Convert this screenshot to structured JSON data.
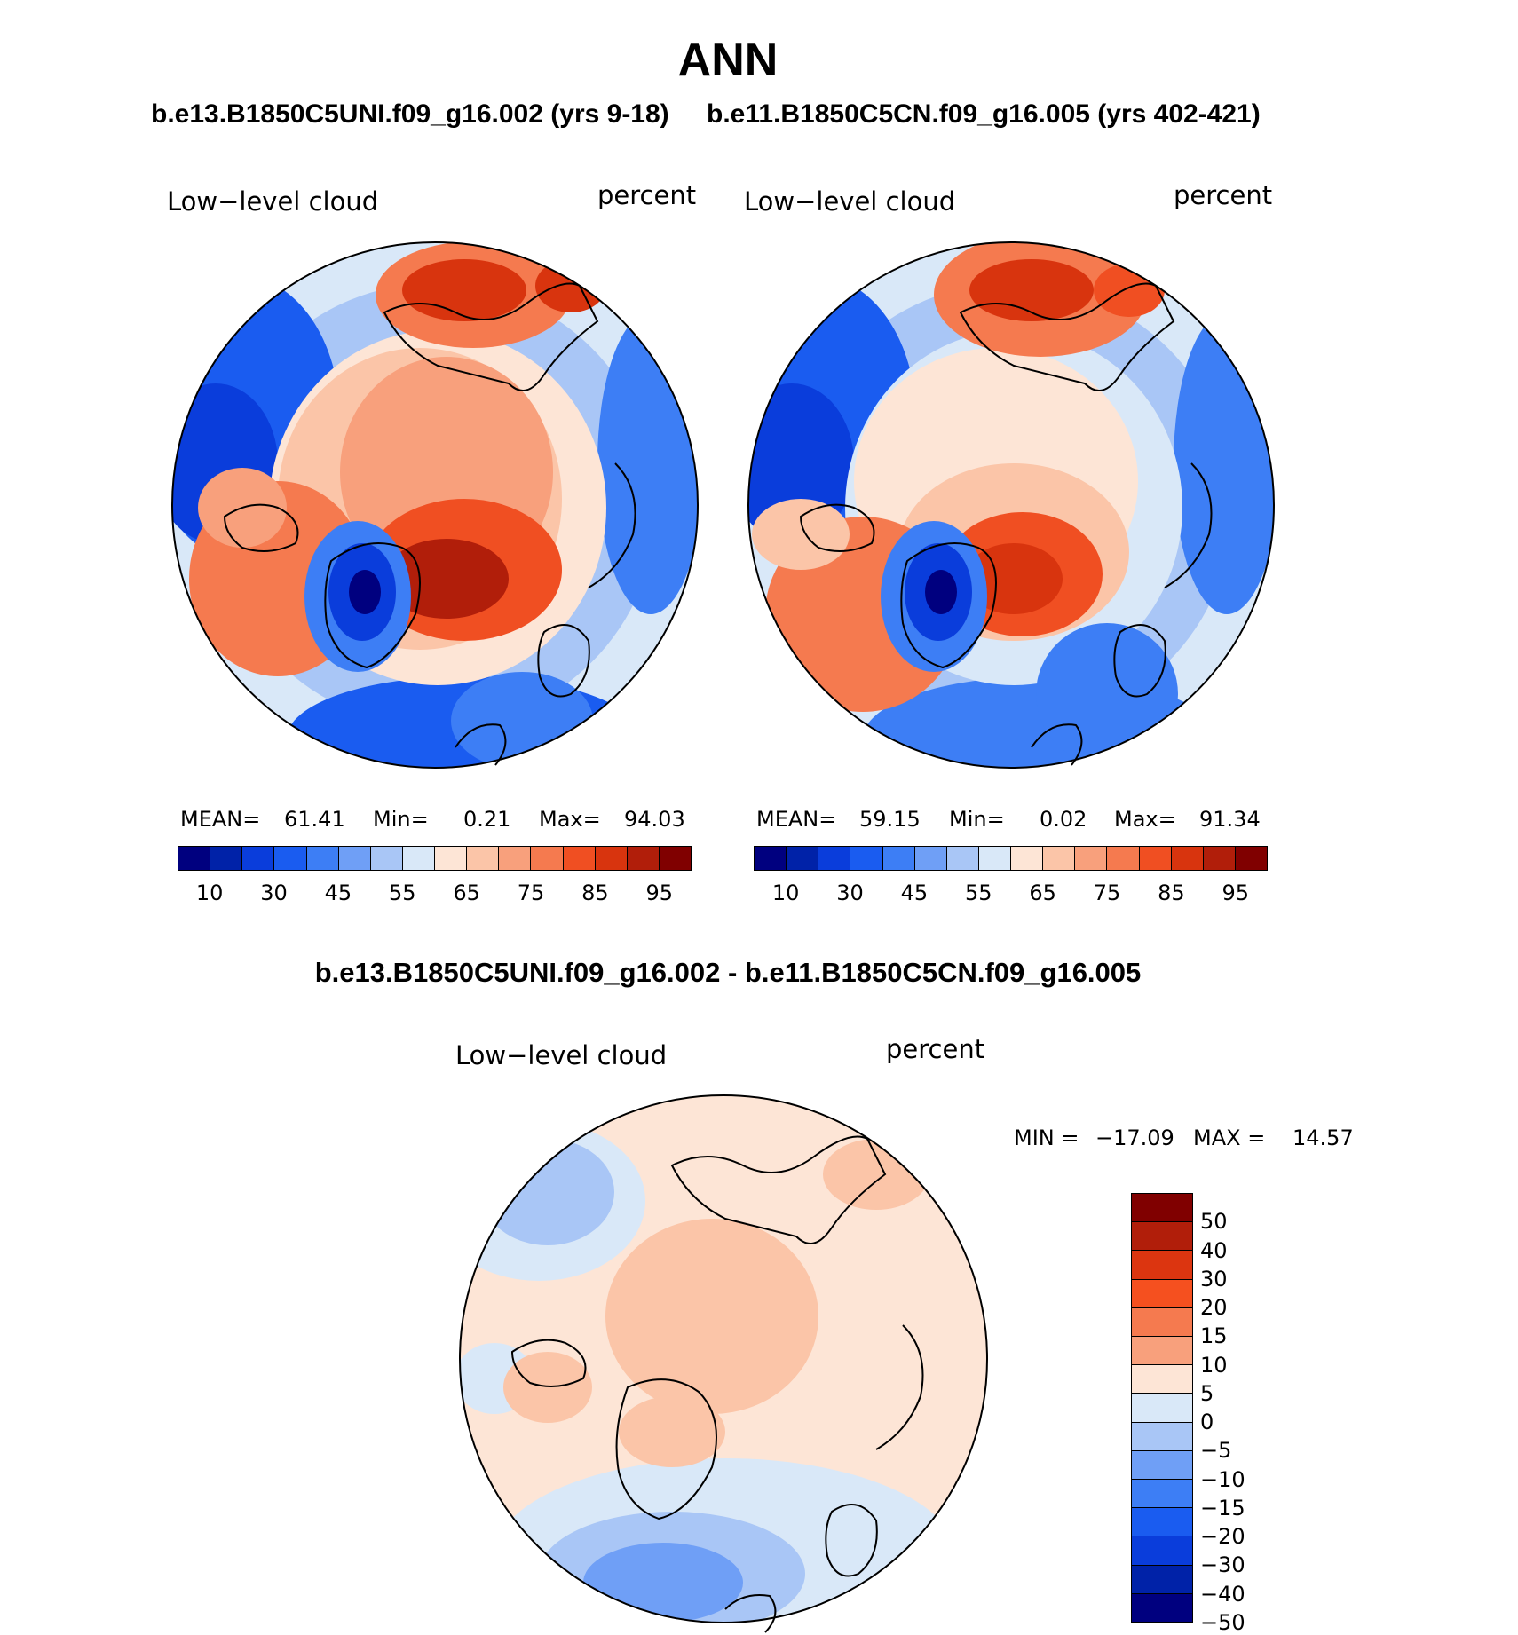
{
  "main_title": "ANN",
  "panels": [
    {
      "case_title": "b.e13.B1850C5UNI.f09_g16.002 (yrs 9-18)",
      "variable": "Low−level cloud",
      "units": "percent",
      "mean_label": "MEAN=",
      "mean_value": "61.41",
      "min_label": "Min=",
      "min_value": "0.21",
      "max_label": "Max=",
      "max_value": "94.03"
    },
    {
      "case_title": "b.e11.B1850C5CN.f09_g16.005 (yrs 402-421)",
      "variable": "Low−level cloud",
      "units": "percent",
      "mean_label": "MEAN=",
      "mean_value": "59.15",
      "min_label": "Min=",
      "min_value": "0.02",
      "max_label": "Max=",
      "max_value": "91.34"
    }
  ],
  "diff_panel": {
    "title": "b.e13.B1850C5UNI.f09_g16.002 - b.e11.B1850C5CN.f09_g16.005",
    "variable": "Low−level cloud",
    "units": "percent",
    "min_label": "MIN =",
    "min_value": "−17.09",
    "max_label": "MAX =",
    "max_value": "14.57"
  },
  "colorbar_top": {
    "colors": [
      "#00007f",
      "#0022a8",
      "#0a3ddb",
      "#1a5cf0",
      "#3d7ef5",
      "#6f9ff6",
      "#a9c6f6",
      "#d9e8f8",
      "#fde5d6",
      "#fbc5a8",
      "#f8a07c",
      "#f57a4f",
      "#f04f22",
      "#d8340e",
      "#b11e0a",
      "#800000"
    ],
    "tick_labels": [
      "10",
      "30",
      "45",
      "55",
      "65",
      "75",
      "85",
      "95"
    ]
  },
  "colorbar_diff": {
    "colors": [
      "#800000",
      "#b11e0a",
      "#dc3510",
      "#f5501f",
      "#f57a4f",
      "#f8a07c",
      "#fde5d6",
      "#d9e8f8",
      "#a9c6f6",
      "#6f9ff6",
      "#3d7ef5",
      "#1a5cf0",
      "#0a3ddb",
      "#0022a8",
      "#00007f"
    ],
    "tick_labels": [
      "50",
      "40",
      "30",
      "20",
      "15",
      "10",
      "5",
      "0",
      "−5",
      "−10",
      "−15",
      "−20",
      "−30",
      "−40",
      "−50"
    ]
  }
}
